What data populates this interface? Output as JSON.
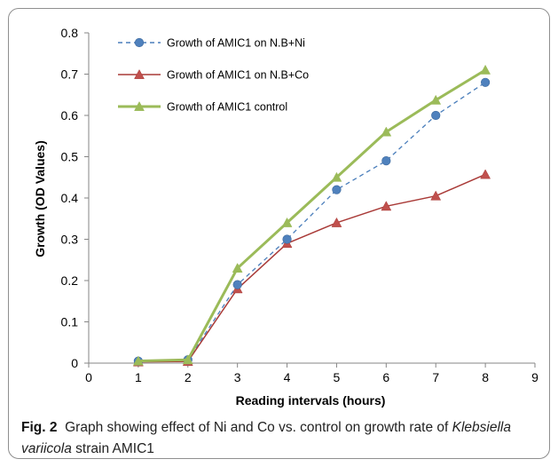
{
  "chart_data": {
    "type": "line",
    "x": [
      1,
      2,
      3,
      4,
      5,
      6,
      7,
      8
    ],
    "xlabel": "Reading intervals (hours)",
    "ylabel": "Growth (OD Values)",
    "xlim": [
      0,
      9
    ],
    "ylim": [
      0,
      0.8
    ],
    "xticks": [
      "0",
      "1",
      "2",
      "3",
      "4",
      "5",
      "6",
      "7",
      "8",
      "9"
    ],
    "yticks": [
      "0",
      "0.1",
      "0.2",
      "0.3",
      "0.4",
      "0.5",
      "0.6",
      "0.7",
      "0.8"
    ],
    "grid": false,
    "legend_position": "top-left",
    "series": [
      {
        "name": "Growth of AMIC1 on N.B+Ni",
        "values": [
          0.005,
          0.008,
          0.19,
          0.3,
          0.42,
          0.49,
          0.6,
          0.68
        ],
        "color": "#4a7ebb",
        "line_style": "dashed",
        "marker": "circle",
        "marker_color": "#4f81bd"
      },
      {
        "name": "Growth of AMIC1 on N.B+Co",
        "values": [
          0.003,
          0.004,
          0.18,
          0.29,
          0.34,
          0.38,
          0.405,
          0.457
        ],
        "color": "#a93a37",
        "line_style": "solid",
        "marker": "triangle",
        "marker_color": "#c0504d"
      },
      {
        "name": "Growth of AMIC1 control",
        "values": [
          0.005,
          0.008,
          0.23,
          0.34,
          0.45,
          0.56,
          0.637,
          0.71
        ],
        "color": "#9bbb59",
        "line_style": "solid",
        "marker": "triangle",
        "marker_color": "#9bbb59"
      }
    ]
  },
  "caption": {
    "label": "Fig. 2",
    "text_before": "Graph showing effect of Ni and Co vs. control on growth rate of ",
    "species": "Klebsiella variicola",
    "text_after": " strain AMIC1"
  }
}
